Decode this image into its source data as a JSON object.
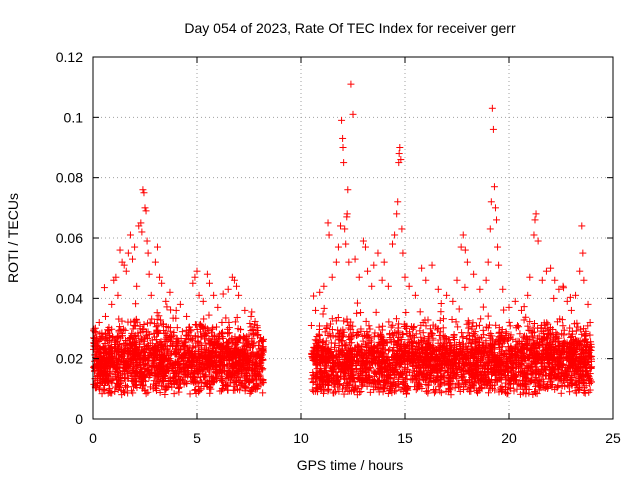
{
  "chart_data": {
    "type": "scatter",
    "title": "Day 054 of 2023, Rate Of TEC Index for receiver gerr",
    "xlabel": "GPS time / hours",
    "ylabel": "ROTI / TECUs",
    "xlim": [
      0,
      25
    ],
    "ylim": [
      0,
      0.12
    ],
    "xticks": [
      0,
      5,
      10,
      15,
      20,
      25
    ],
    "xtick_labels": [
      "0",
      "5",
      "10",
      "15",
      "20",
      "25"
    ],
    "yticks": [
      0,
      0.02,
      0.04,
      0.06,
      0.08,
      0.1,
      0.12
    ],
    "ytick_labels": [
      "0",
      "0.02",
      "0.04",
      "0.06",
      "0.08",
      "0.1",
      "0.12"
    ],
    "grid": true,
    "marker": "plus",
    "color": "#ff0000",
    "data_gap_hours": [
      8.2,
      10.5
    ],
    "points": [
      [
        0.1,
        0.029
      ],
      [
        0.2,
        0.024
      ],
      [
        0.3,
        0.032
      ],
      [
        0.5,
        0.021
      ],
      [
        0.6,
        0.034
      ],
      [
        0.8,
        0.027
      ],
      [
        0.9,
        0.038
      ],
      [
        1.0,
        0.046
      ],
      [
        1.1,
        0.047
      ],
      [
        1.2,
        0.041
      ],
      [
        1.3,
        0.056
      ],
      [
        1.4,
        0.052
      ],
      [
        1.5,
        0.051
      ],
      [
        1.6,
        0.049
      ],
      [
        1.7,
        0.055
      ],
      [
        1.8,
        0.061
      ],
      [
        1.9,
        0.053
      ],
      [
        2.0,
        0.057
      ],
      [
        2.1,
        0.044
      ],
      [
        2.2,
        0.064
      ],
      [
        2.3,
        0.065
      ],
      [
        2.35,
        0.062
      ],
      [
        2.4,
        0.076
      ],
      [
        2.45,
        0.075
      ],
      [
        2.5,
        0.07
      ],
      [
        2.55,
        0.069
      ],
      [
        2.6,
        0.059
      ],
      [
        2.65,
        0.055
      ],
      [
        2.7,
        0.048
      ],
      [
        2.8,
        0.041
      ],
      [
        3.0,
        0.052
      ],
      [
        3.1,
        0.057
      ],
      [
        3.2,
        0.047
      ],
      [
        3.3,
        0.045
      ],
      [
        3.5,
        0.039
      ],
      [
        3.7,
        0.042
      ],
      [
        4.0,
        0.036
      ],
      [
        4.2,
        0.038
      ],
      [
        4.5,
        0.034
      ],
      [
        4.8,
        0.045
      ],
      [
        4.9,
        0.047
      ],
      [
        5.0,
        0.049
      ],
      [
        5.1,
        0.041
      ],
      [
        5.3,
        0.039
      ],
      [
        5.5,
        0.048
      ],
      [
        5.6,
        0.045
      ],
      [
        5.8,
        0.041
      ],
      [
        6.0,
        0.037
      ],
      [
        6.2,
        0.032
      ],
      [
        6.5,
        0.043
      ],
      [
        6.7,
        0.047
      ],
      [
        6.8,
        0.046
      ],
      [
        6.9,
        0.044
      ],
      [
        7.0,
        0.041
      ],
      [
        7.3,
        0.036
      ],
      [
        7.6,
        0.034
      ],
      [
        7.9,
        0.028
      ],
      [
        8.1,
        0.026
      ],
      [
        10.5,
        0.031
      ],
      [
        10.7,
        0.036
      ],
      [
        10.9,
        0.042
      ],
      [
        11.1,
        0.044
      ],
      [
        11.3,
        0.065
      ],
      [
        11.35,
        0.061
      ],
      [
        11.5,
        0.047
      ],
      [
        11.7,
        0.052
      ],
      [
        11.8,
        0.057
      ],
      [
        11.9,
        0.064
      ],
      [
        11.95,
        0.099
      ],
      [
        12.0,
        0.093
      ],
      [
        12.02,
        0.09
      ],
      [
        12.05,
        0.085
      ],
      [
        12.1,
        0.063
      ],
      [
        12.15,
        0.058
      ],
      [
        12.2,
        0.067
      ],
      [
        12.22,
        0.068
      ],
      [
        12.25,
        0.076
      ],
      [
        12.3,
        0.052
      ],
      [
        12.4,
        0.111
      ],
      [
        12.5,
        0.101
      ],
      [
        12.6,
        0.053
      ],
      [
        12.8,
        0.047
      ],
      [
        13.0,
        0.059
      ],
      [
        13.1,
        0.057
      ],
      [
        13.2,
        0.049
      ],
      [
        13.4,
        0.044
      ],
      [
        13.5,
        0.051
      ],
      [
        13.7,
        0.055
      ],
      [
        13.9,
        0.046
      ],
      [
        14.0,
        0.052
      ],
      [
        14.2,
        0.044
      ],
      [
        14.4,
        0.058
      ],
      [
        14.5,
        0.061
      ],
      [
        14.6,
        0.068
      ],
      [
        14.65,
        0.072
      ],
      [
        14.7,
        0.085
      ],
      [
        14.72,
        0.088
      ],
      [
        14.75,
        0.09
      ],
      [
        14.8,
        0.086
      ],
      [
        14.85,
        0.063
      ],
      [
        14.9,
        0.055
      ],
      [
        15.0,
        0.047
      ],
      [
        15.2,
        0.044
      ],
      [
        15.5,
        0.041
      ],
      [
        15.8,
        0.05
      ],
      [
        16.0,
        0.046
      ],
      [
        16.3,
        0.051
      ],
      [
        16.6,
        0.043
      ],
      [
        17.0,
        0.041
      ],
      [
        17.3,
        0.039
      ],
      [
        17.5,
        0.046
      ],
      [
        17.7,
        0.057
      ],
      [
        17.8,
        0.061
      ],
      [
        17.9,
        0.056
      ],
      [
        18.0,
        0.052
      ],
      [
        18.3,
        0.048
      ],
      [
        18.6,
        0.043
      ],
      [
        18.9,
        0.046
      ],
      [
        19.0,
        0.052
      ],
      [
        19.1,
        0.063
      ],
      [
        19.15,
        0.072
      ],
      [
        19.2,
        0.103
      ],
      [
        19.25,
        0.096
      ],
      [
        19.3,
        0.077
      ],
      [
        19.35,
        0.07
      ],
      [
        19.4,
        0.066
      ],
      [
        19.45,
        0.057
      ],
      [
        19.5,
        0.051
      ],
      [
        19.7,
        0.043
      ],
      [
        20.0,
        0.037
      ],
      [
        20.3,
        0.039
      ],
      [
        20.6,
        0.036
      ],
      [
        20.9,
        0.041
      ],
      [
        21.0,
        0.047
      ],
      [
        21.2,
        0.061
      ],
      [
        21.25,
        0.066
      ],
      [
        21.3,
        0.068
      ],
      [
        21.4,
        0.059
      ],
      [
        21.6,
        0.046
      ],
      [
        21.8,
        0.049
      ],
      [
        22.0,
        0.05
      ],
      [
        22.2,
        0.046
      ],
      [
        22.4,
        0.043
      ],
      [
        22.6,
        0.044
      ],
      [
        22.8,
        0.039
      ],
      [
        23.0,
        0.036
      ],
      [
        23.2,
        0.041
      ],
      [
        23.4,
        0.049
      ],
      [
        23.5,
        0.064
      ],
      [
        23.55,
        0.055
      ],
      [
        23.6,
        0.046
      ],
      [
        23.8,
        0.038
      ],
      [
        23.9,
        0.032
      ]
    ]
  }
}
